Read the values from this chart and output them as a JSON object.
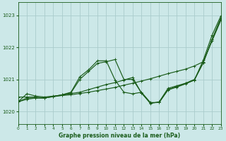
{
  "title": "Graphe pression niveau de la mer (hPa)",
  "background_color": "#cce8e8",
  "grid_color": "#aacccc",
  "line_color": "#1a5c1a",
  "xlim": [
    0,
    23
  ],
  "ylim": [
    1019.6,
    1023.4
  ],
  "yticks": [
    1020,
    1021,
    1022,
    1023
  ],
  "xticks": [
    0,
    1,
    2,
    3,
    4,
    5,
    6,
    7,
    8,
    9,
    10,
    11,
    12,
    13,
    14,
    15,
    16,
    17,
    18,
    19,
    20,
    21,
    22,
    23
  ],
  "series": [
    [
      1020.3,
      1020.55,
      1020.48,
      1020.45,
      1020.48,
      1020.5,
      1020.52,
      1020.56,
      1020.6,
      1020.65,
      1020.7,
      1020.75,
      1020.82,
      1020.88,
      1020.95,
      1021.02,
      1021.1,
      1021.18,
      1021.25,
      1021.32,
      1021.42,
      1021.55,
      1022.2,
      1022.85
    ],
    [
      1020.45,
      1020.45,
      1020.45,
      1020.42,
      1020.47,
      1020.52,
      1020.58,
      1021.0,
      1021.25,
      1021.5,
      1021.55,
      1021.62,
      1021.0,
      1021.0,
      1020.58,
      1020.25,
      1020.3,
      1020.72,
      1020.8,
      1020.88,
      1021.0,
      1021.52,
      1022.25,
      1022.92
    ],
    [
      1020.3,
      1020.42,
      1020.42,
      1020.42,
      1020.47,
      1020.52,
      1020.6,
      1021.08,
      1021.3,
      1021.58,
      1021.58,
      1020.98,
      1020.6,
      1020.55,
      1020.6,
      1020.28,
      1020.28,
      1020.68,
      1020.78,
      1020.88,
      1020.98,
      1021.6,
      1022.38,
      1022.98
    ],
    [
      1020.3,
      1020.38,
      1020.42,
      1020.42,
      1020.46,
      1020.5,
      1020.56,
      1020.6,
      1020.68,
      1020.76,
      1020.84,
      1020.9,
      1020.98,
      1021.06,
      1020.57,
      1020.27,
      1020.28,
      1020.67,
      1020.76,
      1020.86,
      1020.98,
      1021.52,
      1022.24,
      1022.88
    ]
  ]
}
